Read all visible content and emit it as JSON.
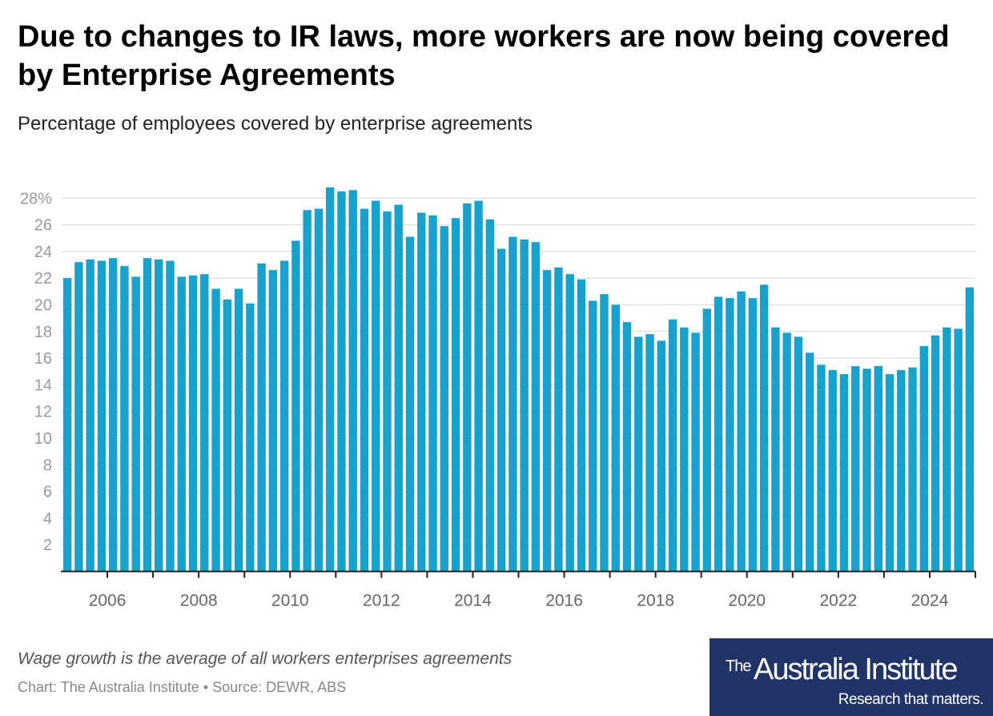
{
  "title": "Due to changes to IR laws, more workers are now being covered by Enterprise Agreements",
  "subtitle": "Percentage of employees covered by enterprise agreements",
  "note": "Wage growth is the average of all workers enterprises agreements",
  "source": "Chart: The Australia Institute • Source: DEWR, ABS",
  "logo": {
    "the": "The",
    "name": "Australia Institute",
    "tagline": "Research that matters."
  },
  "colors": {
    "bar": "#19a1cd",
    "grid": "#e3e3e3",
    "logo_bg": "#213469"
  },
  "chart_data": {
    "type": "bar",
    "title": "Due to changes to IR laws, more workers are now being covered by Enterprise Agreements",
    "frequency": "quarterly",
    "x_start": "2005 Q1",
    "x_end": "2024 Q4",
    "xlabel": "",
    "ylabel": "",
    "ylim": [
      0,
      29
    ],
    "grid": true,
    "y_ticks": [
      2,
      4,
      6,
      8,
      10,
      12,
      14,
      16,
      18,
      20,
      22,
      24,
      26,
      28
    ],
    "y_tick_labels": [
      "2",
      "4",
      "6",
      "8",
      "10",
      "12",
      "14",
      "16",
      "18",
      "20",
      "22",
      "24",
      "26",
      "28%"
    ],
    "x_tick_labels": [
      "2006",
      "2008",
      "2010",
      "2012",
      "2014",
      "2016",
      "2018",
      "2020",
      "2022",
      "2024"
    ],
    "values": [
      22.0,
      23.2,
      23.4,
      23.3,
      23.5,
      22.9,
      22.1,
      23.5,
      23.4,
      23.3,
      22.1,
      22.2,
      22.3,
      21.2,
      20.4,
      21.2,
      20.1,
      23.1,
      22.6,
      23.3,
      24.8,
      27.1,
      27.2,
      28.8,
      28.5,
      28.6,
      27.2,
      27.8,
      27.0,
      27.5,
      25.1,
      26.9,
      26.7,
      25.9,
      26.5,
      27.6,
      27.8,
      26.4,
      24.2,
      25.1,
      24.9,
      24.7,
      22.6,
      22.8,
      22.3,
      21.9,
      20.3,
      20.8,
      20.0,
      18.7,
      17.6,
      17.8,
      17.3,
      18.9,
      18.3,
      17.9,
      19.7,
      20.6,
      20.5,
      21.0,
      20.5,
      21.5,
      18.3,
      17.9,
      17.6,
      16.4,
      15.5,
      15.1,
      14.8,
      15.4,
      15.2,
      15.4,
      14.8,
      15.1,
      15.3,
      16.9,
      17.7,
      18.3,
      18.2,
      21.3
    ]
  }
}
